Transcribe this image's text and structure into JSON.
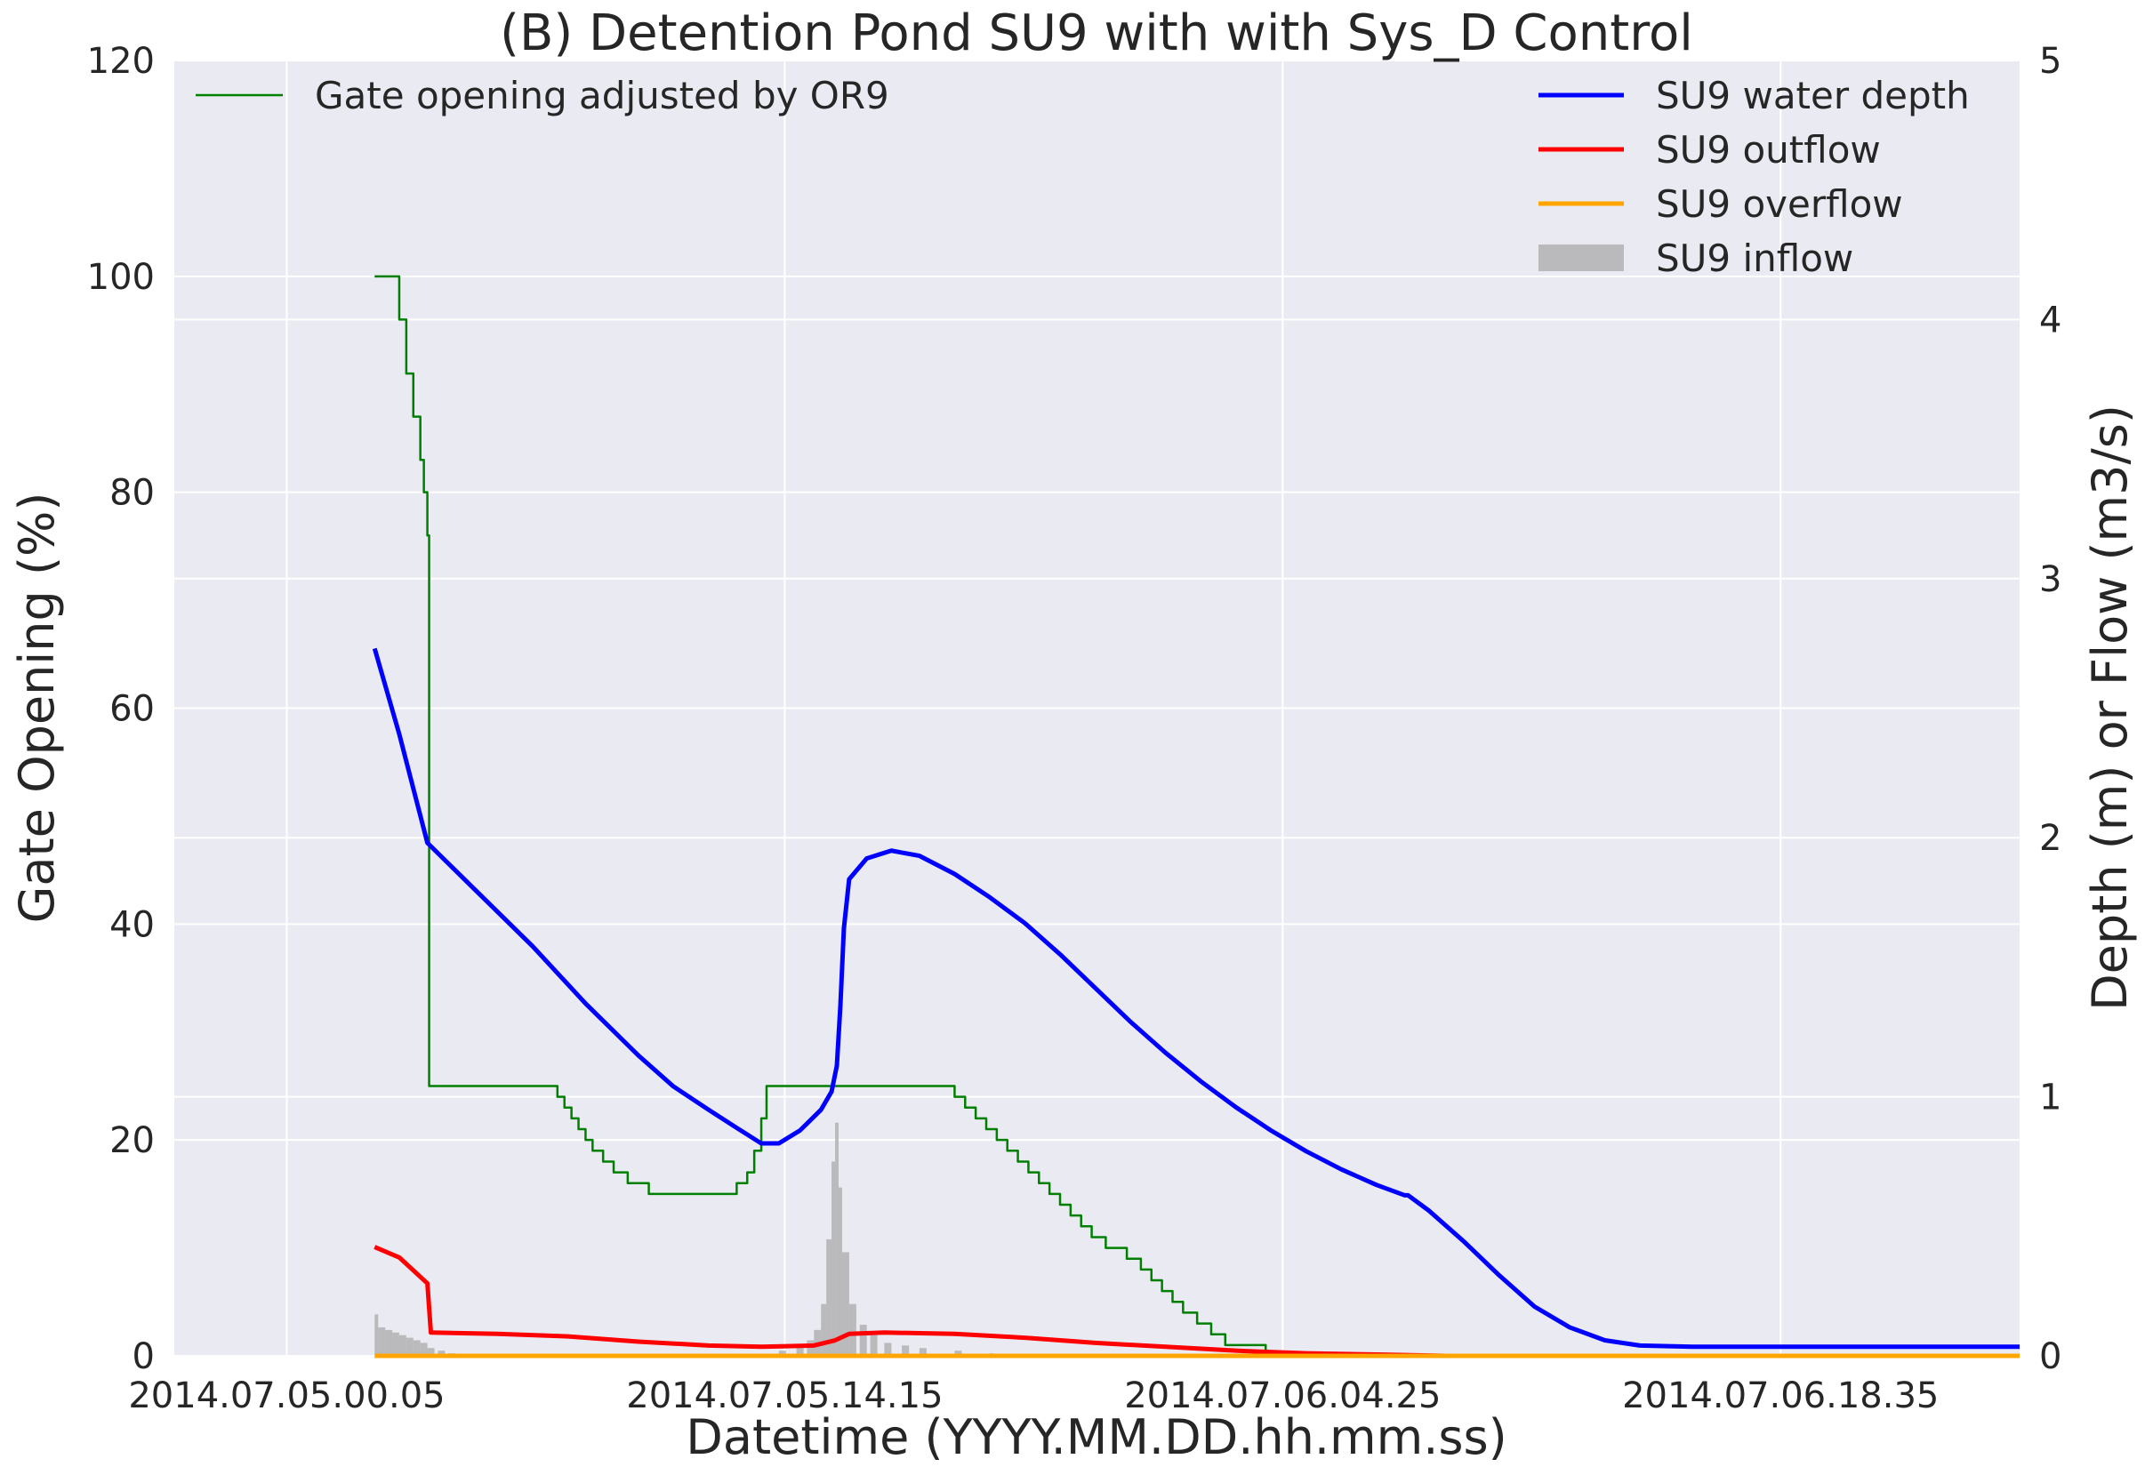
{
  "chart_data": {
    "type": "line",
    "title": "(B) Detention Pond SU9 with with Sys_D Control",
    "xlabel": "Datetime (YYYY.MM.DD.hh.mm.ss)",
    "ylabel_left": "Gate Opening (%)",
    "ylabel_right": "Depth (m) or Flow (m3/s)",
    "x_unit": "hours since 2014.07.05.00.05",
    "x_ticks": [
      {
        "x": 0,
        "label": "2014.07.05.00.05"
      },
      {
        "x": 14.1667,
        "label": "2014.07.05.14.15"
      },
      {
        "x": 28.3333,
        "label": "2014.07.06.04.25"
      },
      {
        "x": 42.5,
        "label": "2014.07.06.18.35"
      }
    ],
    "xlim": [
      -3.2,
      49.3
    ],
    "ylim_left": [
      0,
      120
    ],
    "yticks_left": [
      "0",
      "20",
      "40",
      "60",
      "80",
      "100",
      "120"
    ],
    "ylim_right": [
      0,
      5
    ],
    "yticks_right": [
      "0",
      "1",
      "2",
      "3",
      "4",
      "5"
    ],
    "grid": true,
    "legend_left": {
      "placement": "upper-left",
      "entries": [
        "Gate opening adjusted by OR9"
      ]
    },
    "legend_right": {
      "placement": "upper-right",
      "entries": [
        "SU9 water depth",
        "SU9 outflow",
        "SU9 overflow",
        "SU9 inflow"
      ]
    },
    "colors": {
      "gate": "#008000",
      "depth": "#0000ff",
      "outflow": "#ff0000",
      "overflow": "#ffa500",
      "inflow": "#a9a9a9",
      "background": "#eaeaf2",
      "grid": "#ffffff"
    },
    "series": [
      {
        "name": "Gate opening adjusted by OR9",
        "axis": "left",
        "style": "step",
        "points": [
          [
            2.5,
            100
          ],
          [
            3.0,
            100
          ],
          [
            3.2,
            96
          ],
          [
            3.4,
            91
          ],
          [
            3.6,
            87
          ],
          [
            3.8,
            83
          ],
          [
            3.9,
            80
          ],
          [
            4.0,
            76
          ],
          [
            4.05,
            25
          ],
          [
            7.5,
            25
          ],
          [
            7.7,
            24
          ],
          [
            7.9,
            23
          ],
          [
            8.1,
            22
          ],
          [
            8.3,
            21
          ],
          [
            8.5,
            20
          ],
          [
            8.7,
            19
          ],
          [
            9.0,
            18
          ],
          [
            9.3,
            17
          ],
          [
            9.7,
            16
          ],
          [
            10.3,
            15
          ],
          [
            12.7,
            15
          ],
          [
            12.8,
            16
          ],
          [
            13.1,
            17
          ],
          [
            13.3,
            19
          ],
          [
            13.5,
            22
          ],
          [
            13.65,
            25
          ],
          [
            18.7,
            25
          ],
          [
            19.0,
            24
          ],
          [
            19.3,
            23
          ],
          [
            19.6,
            22
          ],
          [
            19.9,
            21
          ],
          [
            20.2,
            20
          ],
          [
            20.5,
            19
          ],
          [
            20.8,
            18
          ],
          [
            21.1,
            17
          ],
          [
            21.4,
            16
          ],
          [
            21.7,
            15
          ],
          [
            22.0,
            14
          ],
          [
            22.3,
            13
          ],
          [
            22.6,
            12
          ],
          [
            22.9,
            11
          ],
          [
            23.3,
            10
          ],
          [
            23.9,
            9
          ],
          [
            24.3,
            8
          ],
          [
            24.6,
            7
          ],
          [
            24.9,
            6
          ],
          [
            25.2,
            5
          ],
          [
            25.5,
            4
          ],
          [
            25.9,
            3
          ],
          [
            26.3,
            2
          ],
          [
            26.7,
            1
          ],
          [
            27.8,
            1
          ],
          [
            27.85,
            0
          ],
          [
            49.3,
            0
          ]
        ]
      },
      {
        "name": "SU9 water depth",
        "axis": "right",
        "style": "line",
        "points": [
          [
            2.5,
            2.73
          ],
          [
            3.2,
            2.4
          ],
          [
            4.0,
            1.98
          ],
          [
            5.5,
            1.78
          ],
          [
            7.0,
            1.58
          ],
          [
            8.5,
            1.36
          ],
          [
            10.0,
            1.16
          ],
          [
            11.0,
            1.04
          ],
          [
            12.0,
            0.95
          ],
          [
            12.8,
            0.88
          ],
          [
            13.5,
            0.82
          ],
          [
            14.0,
            0.82
          ],
          [
            14.6,
            0.87
          ],
          [
            15.2,
            0.95
          ],
          [
            15.5,
            1.02
          ],
          [
            15.65,
            1.12
          ],
          [
            15.75,
            1.35
          ],
          [
            15.85,
            1.65
          ],
          [
            16.0,
            1.84
          ],
          [
            16.5,
            1.92
          ],
          [
            17.2,
            1.95
          ],
          [
            18.0,
            1.93
          ],
          [
            19.0,
            1.86
          ],
          [
            20.0,
            1.77
          ],
          [
            21.0,
            1.67
          ],
          [
            22.0,
            1.55
          ],
          [
            23.0,
            1.42
          ],
          [
            24.0,
            1.29
          ],
          [
            25.0,
            1.17
          ],
          [
            26.0,
            1.06
          ],
          [
            27.0,
            0.96
          ],
          [
            28.0,
            0.87
          ],
          [
            29.0,
            0.79
          ],
          [
            30.0,
            0.72
          ],
          [
            31.0,
            0.66
          ],
          [
            31.8,
            0.62
          ],
          [
            31.9,
            0.62
          ],
          [
            32.5,
            0.56
          ],
          [
            33.5,
            0.44
          ],
          [
            34.5,
            0.31
          ],
          [
            35.5,
            0.19
          ],
          [
            36.5,
            0.11
          ],
          [
            37.5,
            0.06
          ],
          [
            38.5,
            0.04
          ],
          [
            40.0,
            0.035
          ],
          [
            41.0,
            0.035
          ],
          [
            49.3,
            0.035
          ]
        ]
      },
      {
        "name": "SU9 outflow",
        "axis": "right",
        "style": "line",
        "points": [
          [
            2.5,
            0.42
          ],
          [
            3.2,
            0.38
          ],
          [
            4.0,
            0.28
          ],
          [
            4.1,
            0.09
          ],
          [
            6.0,
            0.085
          ],
          [
            8.0,
            0.075
          ],
          [
            10.0,
            0.055
          ],
          [
            12.0,
            0.04
          ],
          [
            13.5,
            0.035
          ],
          [
            15.0,
            0.04
          ],
          [
            15.6,
            0.06
          ],
          [
            16.0,
            0.085
          ],
          [
            17.0,
            0.09
          ],
          [
            19.0,
            0.085
          ],
          [
            21.0,
            0.07
          ],
          [
            23.0,
            0.05
          ],
          [
            25.0,
            0.035
          ],
          [
            27.0,
            0.02
          ],
          [
            29.0,
            0.01
          ],
          [
            31.0,
            0.005
          ],
          [
            33.0,
            0.0
          ],
          [
            49.3,
            0.0
          ]
        ]
      },
      {
        "name": "SU9 overflow",
        "axis": "right",
        "style": "line",
        "points": [
          [
            2.5,
            0.0
          ],
          [
            49.3,
            0.0
          ]
        ]
      },
      {
        "name": "SU9 inflow",
        "axis": "right",
        "style": "bar",
        "points": [
          [
            2.5,
            0.16
          ],
          [
            2.6,
            0.11
          ],
          [
            2.8,
            0.1
          ],
          [
            3.0,
            0.09
          ],
          [
            3.2,
            0.08
          ],
          [
            3.4,
            0.07
          ],
          [
            3.6,
            0.06
          ],
          [
            3.8,
            0.05
          ],
          [
            4.0,
            0.03
          ],
          [
            4.3,
            0.02
          ],
          [
            4.6,
            0.01
          ],
          [
            14.0,
            0.02
          ],
          [
            14.5,
            0.04
          ],
          [
            14.8,
            0.06
          ],
          [
            15.0,
            0.1
          ],
          [
            15.2,
            0.2
          ],
          [
            15.35,
            0.45
          ],
          [
            15.5,
            0.75
          ],
          [
            15.6,
            0.9
          ],
          [
            15.7,
            0.65
          ],
          [
            15.8,
            0.4
          ],
          [
            16.0,
            0.2
          ],
          [
            16.3,
            0.12
          ],
          [
            16.6,
            0.08
          ],
          [
            17.0,
            0.05
          ],
          [
            17.5,
            0.04
          ],
          [
            18.0,
            0.03
          ],
          [
            19.0,
            0.02
          ],
          [
            20.0,
            0.01
          ]
        ]
      }
    ]
  }
}
